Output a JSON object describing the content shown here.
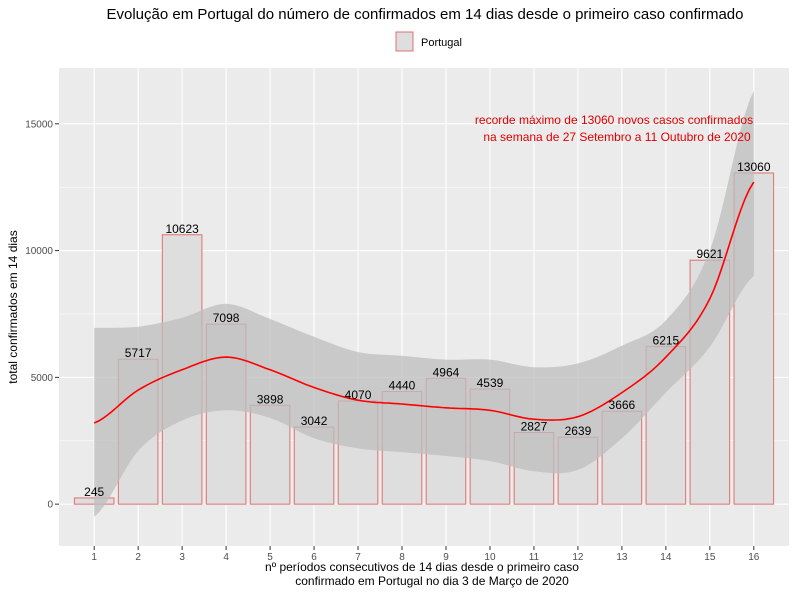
{
  "chart_data": {
    "type": "bar",
    "title": "Evolução em Portugal do número de confirmados em 14 dias desde o primeiro caso confirmado",
    "xlabel": [
      "nº períodos consecutivos de 14 dias desde o primeiro caso",
      "confirmado em Portugal no dia 3 de Março de 2020"
    ],
    "ylabel": "total confirmados em 14 dias",
    "categories": [
      "1",
      "2",
      "3",
      "4",
      "5",
      "6",
      "7",
      "8",
      "9",
      "10",
      "11",
      "12",
      "13",
      "14",
      "15",
      "16"
    ],
    "series": [
      {
        "name": "Portugal",
        "values": [
          245,
          5717,
          10623,
          7098,
          3898,
          3042,
          4070,
          4440,
          4964,
          4539,
          2827,
          2639,
          3666,
          6215,
          9621,
          13060
        ]
      }
    ],
    "data_labels": [
      "245",
      "5717",
      "10623",
      "7098",
      "3898",
      "3042",
      "4070",
      "4440",
      "4964",
      "4539",
      "2827",
      "2639",
      "3666",
      "6215",
      "9621",
      "13060"
    ],
    "smooth": {
      "x": [
        1,
        2,
        3,
        4,
        5,
        6,
        7,
        8,
        9,
        10,
        11,
        12,
        13,
        14,
        15,
        16
      ],
      "fit": [
        3200,
        4500,
        5300,
        5800,
        5300,
        4600,
        4100,
        3950,
        3800,
        3700,
        3350,
        3450,
        4400,
        5800,
        8100,
        12700
      ],
      "lower": [
        -500,
        2100,
        3300,
        3700,
        3400,
        2600,
        2200,
        2050,
        1900,
        1700,
        1300,
        1350,
        2600,
        4400,
        6200,
        9000
      ],
      "upper": [
        6950,
        7000,
        7350,
        7900,
        7300,
        6600,
        6000,
        5850,
        5700,
        5700,
        5400,
        5550,
        6250,
        7250,
        10000,
        16300
      ]
    },
    "yticks": [
      0,
      5000,
      10000,
      15000
    ],
    "ylim": [
      -1650,
      17200
    ],
    "xlim": [
      0.2,
      16.8
    ],
    "grid": true,
    "legend_position": "top",
    "annotation": [
      "recorde máximo de 13060 novos casos confirmados",
      "na semana de 27 Setembro a 11 Outubro de 2020"
    ],
    "colors": {
      "panel": "#ebebeb",
      "gridline": "#ffffff",
      "bar_fill": "#dedede",
      "bar_stroke": "#e07070",
      "ribbon": "#bdbdbd",
      "smooth_line": "#ff0000",
      "annotation": "#e00000"
    }
  }
}
